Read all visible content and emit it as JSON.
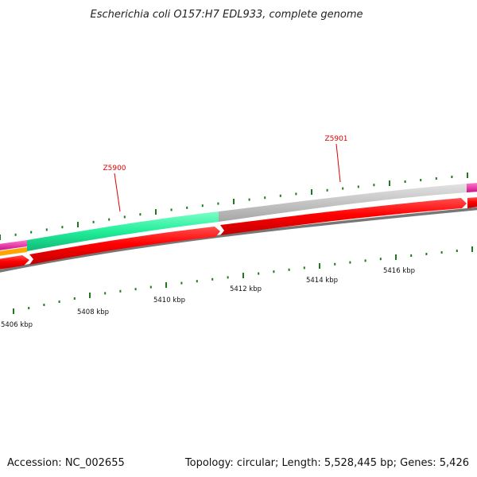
{
  "title": "Escherichia coli O157:H7 EDL933, complete genome",
  "footer": {
    "accession": "Accession: NC_002655",
    "summary": "Topology: circular; Length: 5,528,445 bp; Genes: 5,426"
  },
  "gene_labels": [
    {
      "name": "Z5900",
      "color": "#dd0000"
    },
    {
      "name": "Z5901",
      "color": "#dd0000"
    }
  ],
  "scale_labels": [
    "5406 kbp",
    "5408 kbp",
    "5410 kbp",
    "5412 kbp",
    "5414 kbp",
    "5416 kbp"
  ],
  "colors": {
    "forward_cds": "#ff0000",
    "backbone": "#808080",
    "tick": "#1f7a1f",
    "feature_green": "#22ee99",
    "feature_gray": "#c4c4c4",
    "feature_magenta": "#ee22aa",
    "feature_orange": "#ffa500"
  }
}
